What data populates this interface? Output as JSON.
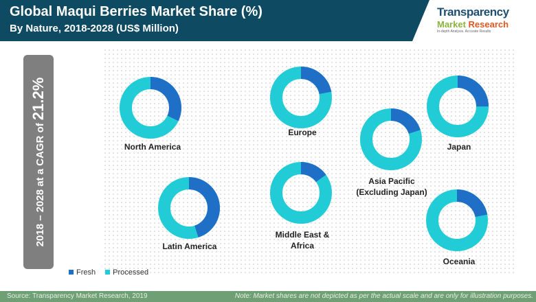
{
  "header": {
    "title": "Global Maqui Berries Market Share (%)",
    "subtitle": "By Nature, 2018-2028 (US$ Million)"
  },
  "logo": {
    "line1": "Transparency",
    "line2a": "Market",
    "line2b": "Research",
    "tagline": "In-depth Analysis. Accurate Results"
  },
  "sidebar": {
    "prefix": "2018 – 2028 at a CAGR of ",
    "value": "21.2%"
  },
  "colors": {
    "fresh": "#1f6fc6",
    "processed": "#22ccd6",
    "header": "#0e4a62",
    "footer": "#6f9f74"
  },
  "chart_data": {
    "type": "donut",
    "title": "Global Maqui Berries Market Share (%)",
    "series_names": [
      "Fresh",
      "Processed"
    ],
    "legend": "bottom-left",
    "regions": [
      {
        "name": "North America",
        "fresh": 32,
        "processed": 68
      },
      {
        "name": "Europe",
        "fresh": 22,
        "processed": 78
      },
      {
        "name": "Japan",
        "fresh": 25,
        "processed": 75
      },
      {
        "name": "Asia Pacific (Excluding Japan)",
        "fresh": 20,
        "processed": 80
      },
      {
        "name": "Latin America",
        "fresh": 45,
        "processed": 55
      },
      {
        "name": "Middle East & Africa",
        "fresh": 15,
        "processed": 85
      },
      {
        "name": "Oceania",
        "fresh": 22,
        "processed": 78
      }
    ]
  },
  "labels": {
    "na": "North America",
    "eu": "Europe",
    "jp": "Japan",
    "ap1": "Asia Pacific",
    "ap2": "(Excluding Japan)",
    "la": "Latin America",
    "mea1": "Middle East &",
    "mea2": "Africa",
    "oc": "Oceania"
  },
  "legend": {
    "fresh": "Fresh",
    "processed": "Processed"
  },
  "footer": {
    "source": "Source: Transparency Market Research, 2019",
    "note": "Note: Market shares are not depicted as per the actual scale and are only for illustration purposes."
  }
}
